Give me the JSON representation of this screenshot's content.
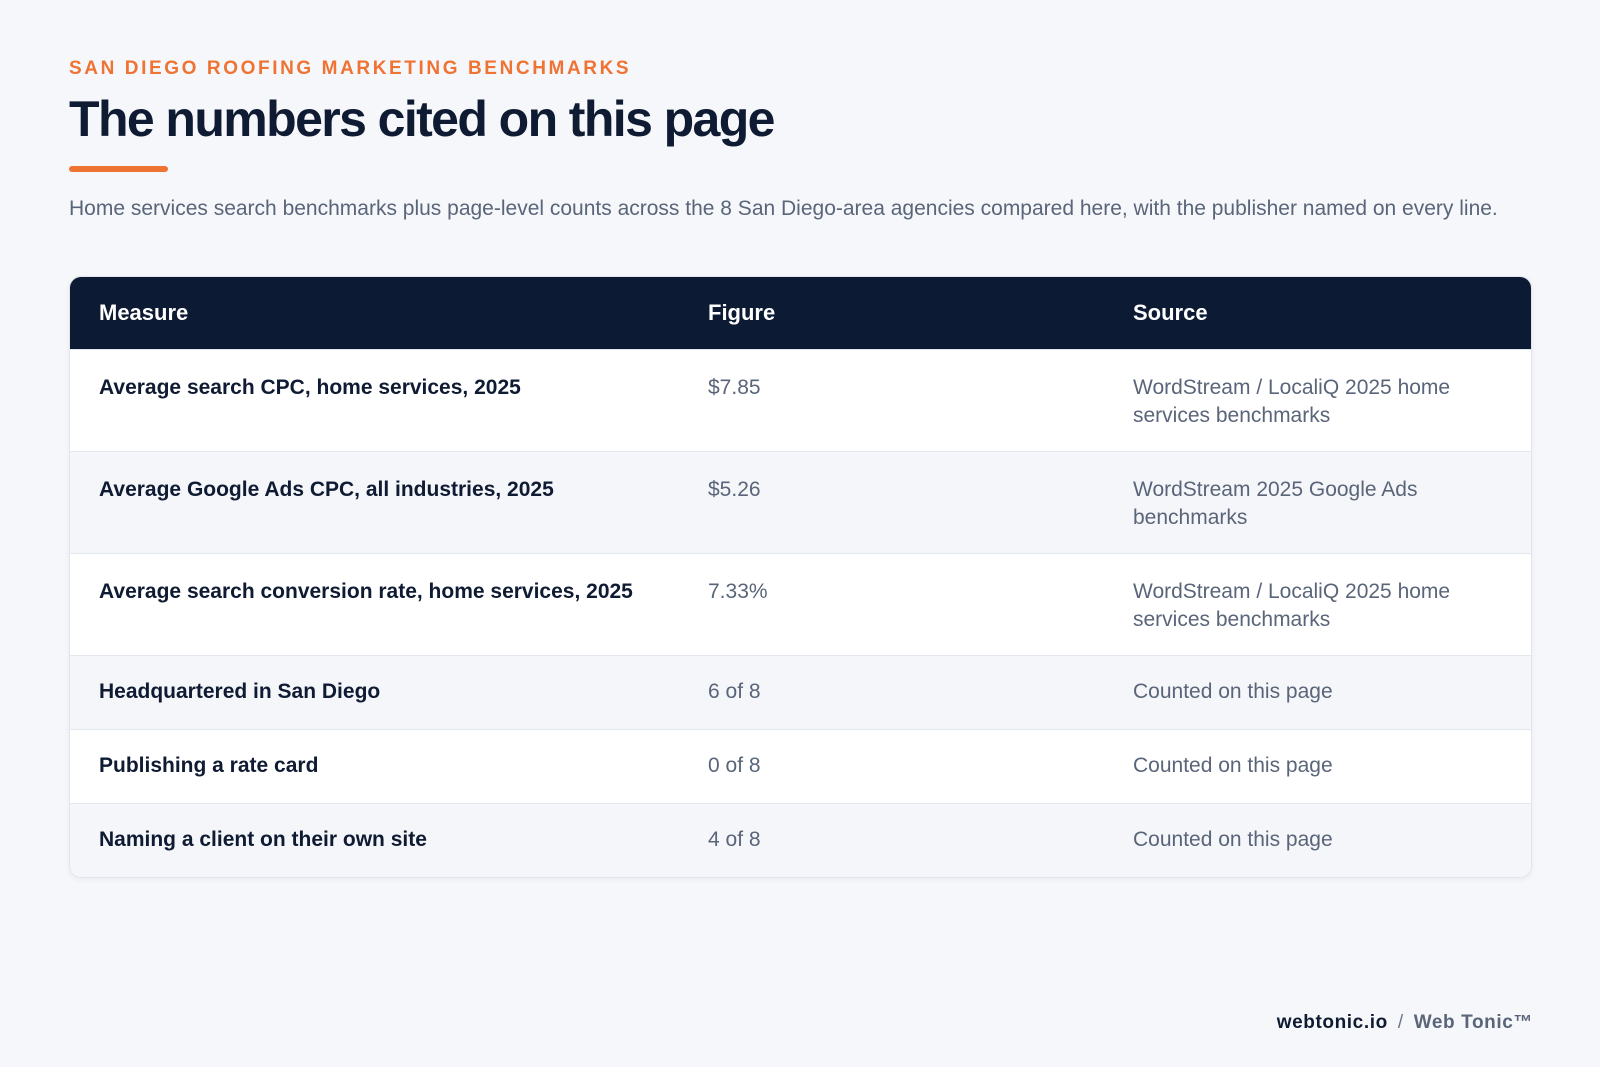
{
  "header": {
    "eyebrow": "SAN DIEGO ROOFING MARKETING BENCHMARKS",
    "title": "The numbers cited on this page",
    "intro": "Home services search benchmarks plus page-level counts across the 8 San Diego-area agencies compared here, with the publisher named on every line."
  },
  "table": {
    "columns": [
      "Measure",
      "Figure",
      "Source"
    ],
    "rows": [
      {
        "measure": "Average search CPC, home services, 2025",
        "figure": "$7.85",
        "source": "WordStream / LocaliQ 2025 home services benchmarks"
      },
      {
        "measure": "Average Google Ads CPC, all industries, 2025",
        "figure": "$5.26",
        "source": "WordStream 2025 Google Ads benchmarks"
      },
      {
        "measure": "Average search conversion rate, home services, 2025",
        "figure": "7.33%",
        "source": "WordStream / LocaliQ 2025 home services benchmarks"
      },
      {
        "measure": "Headquartered in San Diego",
        "figure": "6 of 8",
        "source": "Counted on this page"
      },
      {
        "measure": "Publishing a rate card",
        "figure": "0 of 8",
        "source": "Counted on this page"
      },
      {
        "measure": "Naming a client on their own site",
        "figure": "4 of 8",
        "source": "Counted on this page"
      }
    ]
  },
  "footer": {
    "domain": "webtonic.io",
    "separator": "/",
    "brand": "Web Tonic™"
  },
  "colors": {
    "accent": "#ef7333",
    "header_bg": "#0d1a33",
    "page_bg": "#f5f7fa"
  }
}
